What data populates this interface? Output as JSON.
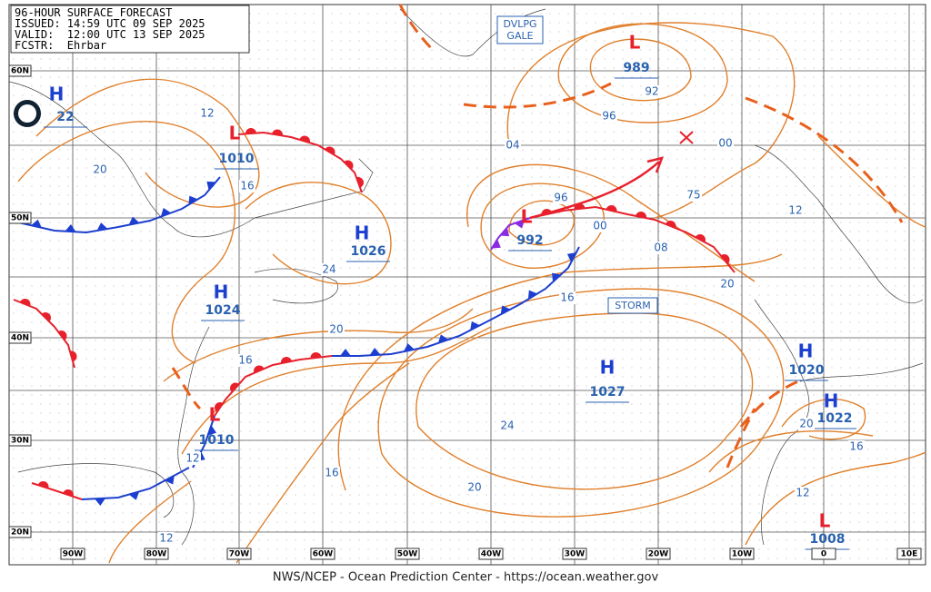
{
  "header": {
    "lines": [
      "96-HOUR SURFACE FORECAST",
      "ISSUED: 14:59 UTC 09 SEP 2025",
      "VALID:  12:00 UTC 13 SEP 2025",
      "FCSTR:  Ehrbar"
    ]
  },
  "pressure_centers": [
    {
      "symbol": "H",
      "pressure": 22
    },
    {
      "symbol": "L",
      "pressure": 1010
    },
    {
      "symbol": "H",
      "pressure": 1026
    },
    {
      "symbol": "H",
      "pressure": 1024
    },
    {
      "symbol": "L",
      "pressure": 989
    },
    {
      "symbol": "L",
      "pressure": 992
    },
    {
      "symbol": "H",
      "pressure": 1027
    },
    {
      "symbol": "L",
      "pressure": 1010
    },
    {
      "symbol": "H",
      "pressure": 1020
    },
    {
      "symbol": "H",
      "pressure": 1022
    },
    {
      "symbol": "L",
      "pressure": 1008
    }
  ],
  "isobar_labels": [
    "12",
    "20",
    "16",
    "24",
    "20",
    "16",
    "12",
    "16",
    "12",
    "04",
    "92",
    "96",
    "00",
    "75",
    "96",
    "00",
    "08",
    "12",
    "20",
    "16",
    "24",
    "20",
    "20",
    "16",
    "12"
  ],
  "warnings": [
    {
      "lines": [
        "DVLPG",
        "GALE"
      ]
    },
    {
      "lines": [
        "STORM"
      ]
    }
  ],
  "latitude_labels": [
    "60N",
    "50N",
    "40N",
    "30N",
    "20N"
  ],
  "longitude_labels": [
    "90W",
    "80W",
    "70W",
    "60W",
    "50W",
    "40W",
    "30W",
    "20W",
    "10W",
    "0",
    "10E"
  ],
  "footer": "NWS/NCEP - Ocean Prediction Center - https://ocean.weather.gov"
}
